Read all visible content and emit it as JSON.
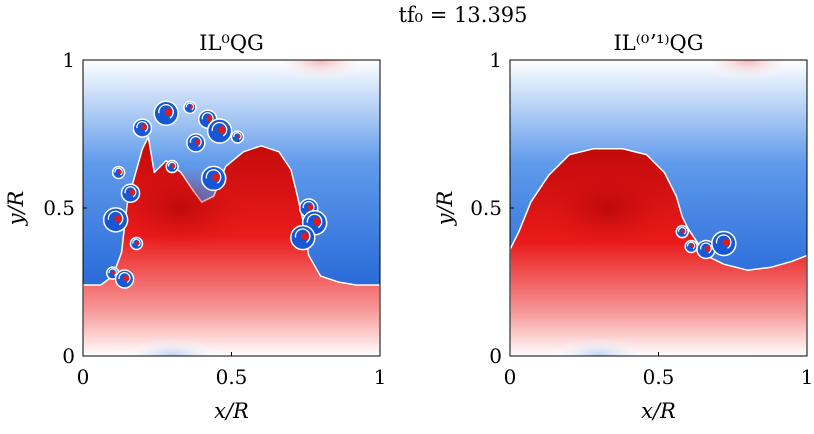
{
  "figure": {
    "suptitle": "tf₀ = 13.395"
  },
  "chart_data": [
    {
      "type": "heatmap",
      "title": "IL⁰QG",
      "xlabel": "x/R",
      "ylabel": "y/R",
      "xlim": [
        0,
        1
      ],
      "ylim": [
        0,
        1
      ],
      "xticks": [
        "0",
        "0.5",
        "1"
      ],
      "yticks": [
        "0",
        "0.5",
        "1"
      ],
      "colormap": {
        "negative": "#0a4fcf",
        "zero": "#ffffff",
        "positive": "#e51515",
        "deep_positive": "#b00000"
      },
      "interface": [
        [
          0.0,
          0.24
        ],
        [
          0.06,
          0.24
        ],
        [
          0.1,
          0.27
        ],
        [
          0.13,
          0.35
        ],
        [
          0.14,
          0.44
        ],
        [
          0.15,
          0.52
        ],
        [
          0.2,
          0.7
        ],
        [
          0.22,
          0.74
        ],
        [
          0.24,
          0.62
        ],
        [
          0.28,
          0.66
        ],
        [
          0.33,
          0.62
        ],
        [
          0.37,
          0.56
        ],
        [
          0.4,
          0.52
        ],
        [
          0.44,
          0.54
        ],
        [
          0.48,
          0.64
        ],
        [
          0.54,
          0.69
        ],
        [
          0.6,
          0.71
        ],
        [
          0.66,
          0.69
        ],
        [
          0.7,
          0.63
        ],
        [
          0.72,
          0.55
        ],
        [
          0.74,
          0.46
        ],
        [
          0.76,
          0.34
        ],
        [
          0.8,
          0.27
        ],
        [
          0.86,
          0.25
        ],
        [
          0.92,
          0.24
        ],
        [
          1.0,
          0.24
        ]
      ],
      "eddies": [
        [
          0.12,
          0.62
        ],
        [
          0.16,
          0.55
        ],
        [
          0.11,
          0.46
        ],
        [
          0.18,
          0.38
        ],
        [
          0.2,
          0.77
        ],
        [
          0.28,
          0.82
        ],
        [
          0.36,
          0.84
        ],
        [
          0.42,
          0.8
        ],
        [
          0.46,
          0.76
        ],
        [
          0.52,
          0.74
        ],
        [
          0.38,
          0.72
        ],
        [
          0.44,
          0.6
        ],
        [
          0.3,
          0.64
        ],
        [
          0.76,
          0.5
        ],
        [
          0.78,
          0.45
        ],
        [
          0.1,
          0.28
        ],
        [
          0.14,
          0.26
        ],
        [
          0.74,
          0.4
        ]
      ]
    },
    {
      "type": "heatmap",
      "title": "IL⁽⁰ʼ¹⁾QG",
      "xlabel": "x/R",
      "ylabel": "y/R",
      "xlim": [
        0,
        1
      ],
      "ylim": [
        0,
        1
      ],
      "xticks": [
        "0",
        "0.5",
        "1"
      ],
      "yticks": [
        "0",
        "0.5",
        "1"
      ],
      "colormap": {
        "negative": "#0a4fcf",
        "zero": "#ffffff",
        "positive": "#e51515",
        "deep_positive": "#b00000"
      },
      "interface": [
        [
          0.0,
          0.36
        ],
        [
          0.03,
          0.42
        ],
        [
          0.07,
          0.52
        ],
        [
          0.13,
          0.61
        ],
        [
          0.2,
          0.68
        ],
        [
          0.28,
          0.7
        ],
        [
          0.38,
          0.7
        ],
        [
          0.46,
          0.68
        ],
        [
          0.52,
          0.62
        ],
        [
          0.56,
          0.54
        ],
        [
          0.58,
          0.47
        ],
        [
          0.6,
          0.43
        ],
        [
          0.62,
          0.4
        ],
        [
          0.66,
          0.34
        ],
        [
          0.72,
          0.31
        ],
        [
          0.8,
          0.29
        ],
        [
          0.88,
          0.3
        ],
        [
          0.95,
          0.32
        ],
        [
          1.0,
          0.34
        ]
      ],
      "eddies": [
        [
          0.61,
          0.37
        ],
        [
          0.66,
          0.36
        ],
        [
          0.72,
          0.38
        ],
        [
          0.58,
          0.42
        ]
      ]
    }
  ]
}
